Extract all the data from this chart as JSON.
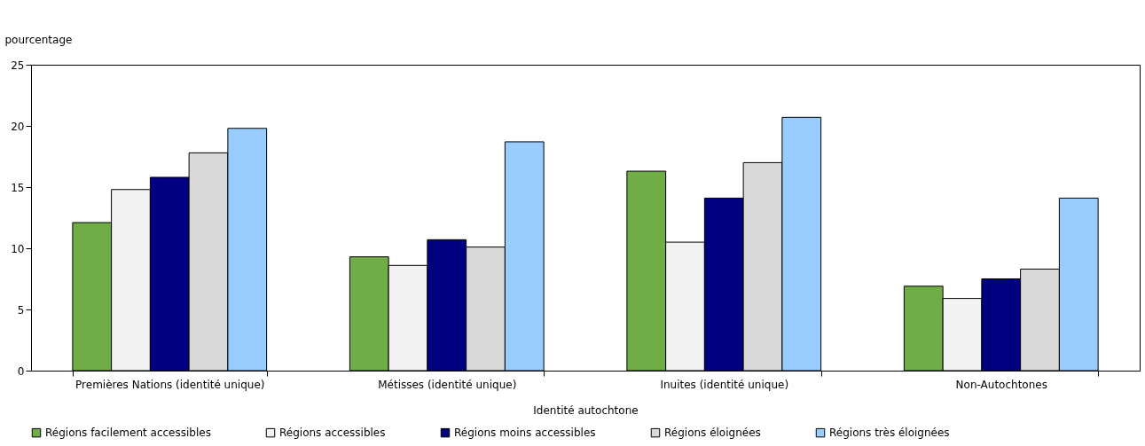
{
  "chart_data": {
    "type": "bar",
    "ylabel": "pourcentage",
    "xlabel": "Identité autochtone",
    "categories": [
      "Premières Nations (identité unique)",
      "Métisses (identité unique)",
      "Inuites (identité unique)",
      "Non-Autochtones"
    ],
    "series": [
      {
        "name": "Régions facilement accessibles",
        "color": "#70ad47",
        "values": [
          12.1,
          9.3,
          16.3,
          6.9
        ]
      },
      {
        "name": "Régions accessibles",
        "color": "#f2f2f2",
        "values": [
          14.8,
          8.6,
          10.5,
          5.9
        ]
      },
      {
        "name": "Régions moins accessibles",
        "color": "#000080",
        "values": [
          15.8,
          10.7,
          14.1,
          7.5
        ]
      },
      {
        "name": "Régions éloignées",
        "color": "#d9d9d9",
        "values": [
          17.8,
          10.1,
          17.0,
          8.3
        ]
      },
      {
        "name": "Régions très éloignées",
        "color": "#99ccff",
        "values": [
          19.8,
          18.7,
          20.7,
          14.1
        ]
      }
    ],
    "ylim": [
      0,
      25
    ],
    "yticks": [
      0,
      5,
      10,
      15,
      20,
      25
    ],
    "grid": false,
    "legend": "bottom"
  }
}
